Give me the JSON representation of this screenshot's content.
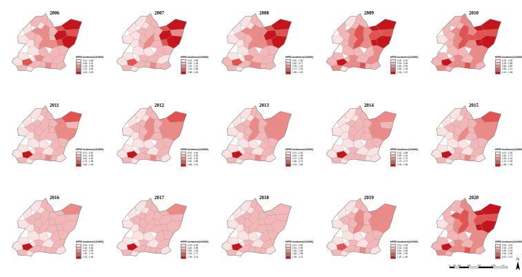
{
  "legend_title": "HFRS incidence(1/10000)",
  "colors": [
    "#fbe3e3",
    "#f4b7b7",
    "#ec8a88",
    "#e2524f",
    "#c5141c"
  ],
  "panels": [
    {
      "year": "2006",
      "ranges": [
        "0.01 - 0.48",
        "0.49 - 1.22",
        "1.23 - 1.96",
        "1.97 - 2.60",
        "2.61 - 3.24"
      ],
      "levels": [
        0,
        1,
        2,
        0,
        1,
        1,
        0,
        1,
        2,
        1,
        1,
        0,
        1,
        2,
        1,
        3,
        4,
        4,
        3,
        2,
        3,
        4,
        1,
        1,
        1,
        0,
        2,
        1,
        1,
        0,
        3,
        0,
        1,
        1,
        2,
        1,
        0,
        1,
        0,
        1
      ]
    },
    {
      "year": "2007",
      "ranges": [
        "0.02 - 0.58",
        "0.59 - 1.28",
        "1.29 - 1.91",
        "1.92 - 2.55",
        "2.56 - 3.18"
      ],
      "levels": [
        0,
        0,
        1,
        0,
        1,
        0,
        0,
        1,
        1,
        1,
        1,
        0,
        1,
        2,
        1,
        3,
        4,
        4,
        2,
        1,
        3,
        4,
        1,
        1,
        0,
        0,
        1,
        1,
        0,
        0,
        3,
        0,
        1,
        1,
        2,
        1,
        0,
        1,
        0,
        1
      ]
    },
    {
      "year": "2008",
      "ranges": [
        "0.00 - 0.39",
        "0.40 - 0.77",
        "0.78 - 1.16",
        "1.17 - 1.54",
        "1.55 - 1.93"
      ],
      "levels": [
        0,
        1,
        2,
        0,
        1,
        0,
        0,
        1,
        2,
        1,
        2,
        0,
        1,
        2,
        2,
        3,
        4,
        4,
        3,
        2,
        3,
        4,
        1,
        1,
        1,
        0,
        2,
        1,
        1,
        0,
        3,
        0,
        1,
        2,
        2,
        1,
        1,
        1,
        0,
        1
      ]
    },
    {
      "year": "2009",
      "ranges": [
        "0.00 - 0.32",
        "0.33 - 0.63",
        "0.64 - 0.94",
        "0.95 - 1.25",
        "1.26 - 1.57"
      ],
      "levels": [
        0,
        1,
        2,
        1,
        1,
        0,
        1,
        2,
        3,
        1,
        2,
        1,
        2,
        3,
        2,
        4,
        4,
        3,
        3,
        2,
        4,
        4,
        2,
        1,
        1,
        1,
        2,
        1,
        2,
        1,
        4,
        1,
        2,
        2,
        3,
        1,
        1,
        2,
        0,
        1
      ]
    },
    {
      "year": "2010",
      "ranges": [
        "0.00 - 0.28",
        "0.29 - 0.55",
        "0.56 - 0.83",
        "0.84 - 1.11",
        "1.12 - 1.38"
      ],
      "levels": [
        0,
        1,
        2,
        1,
        2,
        1,
        1,
        2,
        3,
        2,
        2,
        1,
        2,
        3,
        3,
        4,
        4,
        3,
        3,
        2,
        4,
        4,
        2,
        2,
        1,
        1,
        2,
        1,
        2,
        1,
        4,
        1,
        2,
        2,
        3,
        2,
        1,
        2,
        1,
        1
      ]
    },
    {
      "year": "2011",
      "ranges": [
        "0.01 - 0.40",
        "0.41 - 0.80",
        "0.81 - 1.20",
        "1.21 - 1.59",
        "1.60 - 1.99"
      ],
      "levels": [
        0,
        1,
        1,
        0,
        1,
        0,
        0,
        1,
        1,
        1,
        1,
        0,
        1,
        1,
        1,
        2,
        3,
        2,
        1,
        1,
        2,
        2,
        1,
        1,
        0,
        0,
        1,
        0,
        1,
        0,
        4,
        0,
        1,
        1,
        2,
        1,
        0,
        1,
        0,
        0
      ]
    },
    {
      "year": "2012",
      "ranges": [
        "0.00 - 0.46",
        "0.47 - 0.93",
        "0.94 - 1.39",
        "1.40 - 1.85",
        "1.86 - 2.31"
      ],
      "levels": [
        0,
        1,
        1,
        0,
        1,
        0,
        0,
        1,
        2,
        1,
        1,
        0,
        1,
        2,
        1,
        2,
        3,
        2,
        2,
        1,
        2,
        2,
        1,
        1,
        0,
        0,
        1,
        0,
        1,
        0,
        4,
        0,
        1,
        1,
        2,
        1,
        0,
        1,
        0,
        0
      ]
    },
    {
      "year": "2013",
      "ranges": [
        "0.01 - 0.53",
        "0.54 - 1.06",
        "1.07 - 1.59",
        "1.60 - 2.12",
        "2.13 - 2.65"
      ],
      "levels": [
        0,
        1,
        1,
        0,
        1,
        0,
        0,
        1,
        2,
        1,
        1,
        0,
        1,
        2,
        1,
        2,
        2,
        2,
        2,
        1,
        2,
        2,
        1,
        1,
        0,
        0,
        1,
        0,
        1,
        0,
        4,
        0,
        1,
        1,
        2,
        1,
        0,
        1,
        0,
        0
      ]
    },
    {
      "year": "2014",
      "ranges": [
        "0.02 - 0.58",
        "0.59 - 1.15",
        "1.16 - 1.72",
        "1.73 - 2.27",
        "2.28 - 2.85"
      ],
      "levels": [
        0,
        0,
        1,
        0,
        1,
        0,
        0,
        1,
        1,
        1,
        1,
        0,
        1,
        1,
        1,
        2,
        2,
        2,
        1,
        1,
        2,
        2,
        1,
        1,
        0,
        0,
        1,
        0,
        0,
        0,
        4,
        0,
        1,
        1,
        1,
        0,
        0,
        1,
        0,
        0
      ]
    },
    {
      "year": "2015",
      "ranges": [
        "0.01 - 0.39",
        "0.40 - 0.77",
        "0.78 - 1.16",
        "1.17 - 1.54",
        "1.55 - 1.93"
      ],
      "levels": [
        0,
        1,
        1,
        0,
        1,
        0,
        0,
        1,
        1,
        1,
        1,
        0,
        1,
        2,
        1,
        2,
        3,
        2,
        2,
        1,
        2,
        2,
        1,
        1,
        0,
        0,
        1,
        0,
        1,
        0,
        4,
        0,
        1,
        1,
        2,
        1,
        0,
        1,
        0,
        0
      ]
    },
    {
      "year": "2016",
      "ranges": [
        "0.01 - 0.33",
        "0.34 - 0.66",
        "0.67 - 0.99",
        "1.00 - 1.31",
        "1.32 - 1.64"
      ],
      "levels": [
        0,
        1,
        1,
        0,
        1,
        0,
        0,
        1,
        1,
        1,
        1,
        0,
        1,
        1,
        1,
        1,
        2,
        1,
        1,
        1,
        1,
        1,
        1,
        1,
        0,
        0,
        1,
        0,
        1,
        0,
        4,
        0,
        1,
        1,
        1,
        1,
        0,
        1,
        0,
        0
      ]
    },
    {
      "year": "2017",
      "ranges": [
        "0.03 - 0.45",
        "0.46 - 0.89",
        "0.90 - 1.33",
        "1.34 - 1.77",
        "1.78 - 2.21"
      ],
      "levels": [
        0,
        1,
        1,
        0,
        1,
        0,
        0,
        1,
        1,
        1,
        1,
        0,
        1,
        1,
        1,
        1,
        2,
        1,
        1,
        1,
        1,
        1,
        1,
        1,
        0,
        0,
        1,
        0,
        1,
        0,
        4,
        0,
        1,
        1,
        1,
        1,
        0,
        1,
        0,
        0
      ]
    },
    {
      "year": "2018",
      "ranges": [
        "0.01 - 0.50",
        "0.51 - 0.99",
        "1.00 - 1.48",
        "1.49 - 1.98",
        "1.99 - 2.47"
      ],
      "levels": [
        0,
        1,
        1,
        0,
        1,
        0,
        0,
        1,
        1,
        1,
        1,
        0,
        1,
        1,
        1,
        1,
        1,
        1,
        1,
        1,
        1,
        1,
        1,
        1,
        0,
        0,
        1,
        0,
        1,
        0,
        4,
        0,
        1,
        1,
        1,
        1,
        0,
        1,
        0,
        0
      ]
    },
    {
      "year": "2019",
      "ranges": [
        "0.01 - 0.32",
        "0.33 - 0.63",
        "0.64 - 0.95",
        "0.96 - 1.28",
        "1.29 - 1.59"
      ],
      "levels": [
        0,
        1,
        1,
        0,
        1,
        0,
        0,
        1,
        2,
        1,
        1,
        0,
        1,
        2,
        1,
        2,
        2,
        2,
        2,
        1,
        2,
        2,
        1,
        1,
        0,
        0,
        1,
        0,
        1,
        0,
        3,
        0,
        1,
        1,
        2,
        1,
        0,
        1,
        0,
        0
      ]
    },
    {
      "year": "2020",
      "ranges": [
        "0.00 - 0.15",
        "0.16 - 0.29",
        "0.30 - 0.43",
        "0.44 - 0.56",
        "0.57 - 0.70"
      ],
      "levels": [
        0,
        1,
        3,
        1,
        2,
        1,
        1,
        2,
        3,
        2,
        2,
        1,
        2,
        3,
        2,
        4,
        4,
        3,
        3,
        2,
        4,
        4,
        2,
        2,
        1,
        1,
        2,
        1,
        2,
        1,
        4,
        1,
        2,
        2,
        3,
        2,
        1,
        2,
        1,
        1
      ]
    }
  ],
  "scalebar": {
    "labels": [
      "0",
      "150",
      "300",
      "600",
      "900",
      "1,200"
    ],
    "unit": "km"
  },
  "north_arrow": {
    "label": "N"
  }
}
